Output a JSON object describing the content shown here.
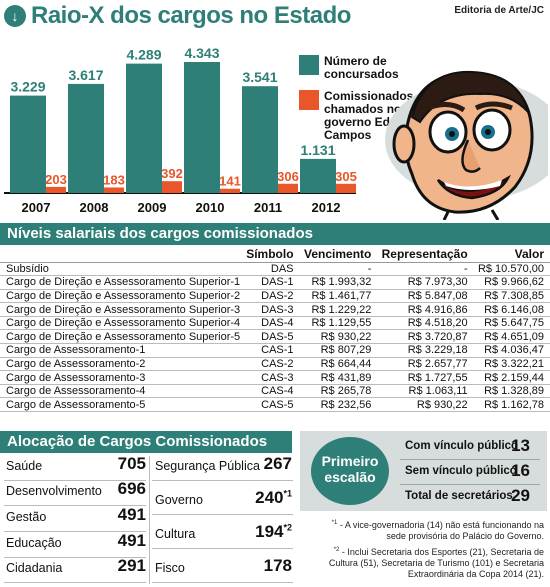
{
  "header": {
    "title": "Raio-X dos cargos no Estado",
    "credit": "Editoria de Arte/JC",
    "icon": "arrow-down-icon"
  },
  "colors": {
    "teal": "#2e7f78",
    "orange": "#e8562a"
  },
  "chart_data": {
    "type": "bar",
    "categories": [
      "2007",
      "2008",
      "2009",
      "2010",
      "2011",
      "2012"
    ],
    "series": [
      {
        "name": "Número de concursados",
        "values": [
          3229,
          3617,
          4289,
          4343,
          3541,
          1131
        ],
        "labels": [
          "3.229",
          "3.617",
          "4.289",
          "4.343",
          "3.541",
          "1.131"
        ],
        "color": "#2e7f78"
      },
      {
        "name": "Comissionados chamados no governo Eduardo Campos",
        "values": [
          203,
          183,
          392,
          141,
          306,
          305
        ],
        "labels": [
          "203",
          "183",
          "392",
          "141",
          "306",
          "305"
        ],
        "color": "#e8562a"
      }
    ],
    "ylim": [
      0,
      4500
    ]
  },
  "legend": {
    "items": [
      {
        "lines": [
          "Número de",
          "concursados"
        ]
      },
      {
        "lines": [
          "Comissionados",
          "chamados no",
          "governo Eduardo",
          "Campos"
        ]
      }
    ]
  },
  "salary": {
    "section_title": "Níveis salariais dos cargos comissionados",
    "headers": [
      "",
      "Símbolo",
      "Vencimento",
      "Representação",
      "Valor"
    ],
    "rows": [
      [
        "Subsídio",
        "DAS",
        "-",
        "-",
        "R$ 10.570,00"
      ],
      [
        "Cargo de Direção e Assessoramento Superior-1",
        "DAS-1",
        "R$ 1.993,32",
        "R$ 7.973,30",
        "R$ 9.966,62"
      ],
      [
        "Cargo de Direção e Assessoramento Superior-2",
        "DAS-2",
        "R$ 1.461,77",
        "R$ 5.847,08",
        "R$ 7.308,85"
      ],
      [
        "Cargo de Direção e Assessoramento Superior-3",
        "DAS-3",
        "R$ 1.229,22",
        "R$ 4.916,86",
        "R$ 6.146,08"
      ],
      [
        "Cargo de Direção e Assessoramento Superior-4",
        "DAS-4",
        "R$ 1.129,55",
        "R$ 4.518,20",
        "R$ 5.647,75"
      ],
      [
        "Cargo de Direção e Assessoramento Superior-5",
        "DAS-5",
        "R$ 930,22",
        "R$ 3.720,87",
        "R$ 4.651,09"
      ],
      [
        "Cargo de Assessoramento-1",
        "CAS-1",
        "R$ 807,29",
        "R$ 3.229,18",
        "R$ 4.036,47"
      ],
      [
        "Cargo de Assessoramento-2",
        "CAS-2",
        "R$ 664,44",
        "R$ 2.657,77",
        "R$ 3.322,21"
      ],
      [
        "Cargo de Assessoramento-3",
        "CAS-3",
        "R$ 431,89",
        "R$ 1.727,55",
        "R$ 2.159,44"
      ],
      [
        "Cargo de Assessoramento-4",
        "CAS-4",
        "R$ 265,78",
        "R$ 1.063,11",
        "R$ 1.328,89"
      ],
      [
        "Cargo de Assessoramento-5",
        "CAS-5",
        "R$ 232,56",
        "R$ 930,22",
        "R$ 1.162,78"
      ]
    ]
  },
  "allocation": {
    "section_title": "Alocação de Cargos Comissionados",
    "left": [
      {
        "label": "Saúde",
        "value": "705"
      },
      {
        "label": "Desenvolvimento",
        "value": "696"
      },
      {
        "label": "Gestão",
        "value": "491"
      },
      {
        "label": "Educação",
        "value": "491"
      },
      {
        "label": "Cidadania",
        "value": "291"
      }
    ],
    "right": [
      {
        "label": "Segurança Pública",
        "value": "267",
        "mark": ""
      },
      {
        "label": "Governo",
        "value": "240",
        "mark": "*1"
      },
      {
        "label": "Cultura",
        "value": "194",
        "mark": "*2"
      },
      {
        "label": "Fisco",
        "value": "178",
        "mark": ""
      }
    ]
  },
  "primeiro": {
    "title_lines": [
      "Primeiro",
      "escalão"
    ],
    "rows": [
      {
        "label": "Com vínculo público",
        "value": "13"
      },
      {
        "label": "Sem vínculo público",
        "value": "16"
      },
      {
        "label": "Total de secretários",
        "value": "29"
      }
    ]
  },
  "notes": [
    {
      "mark": "*1",
      "lines": [
        "- A vice-governadoria (14) não está funcionando na",
        "sede provisória do Palácio do Governo."
      ]
    },
    {
      "mark": "*2",
      "lines": [
        "- Inclui Secretaria dos Esportes (21), Secretaria de",
        "Cultura (51), Secretaria de Turismo (101) e Secretaria",
        "Extraordinária da Copa 2014 (21)."
      ]
    }
  ]
}
